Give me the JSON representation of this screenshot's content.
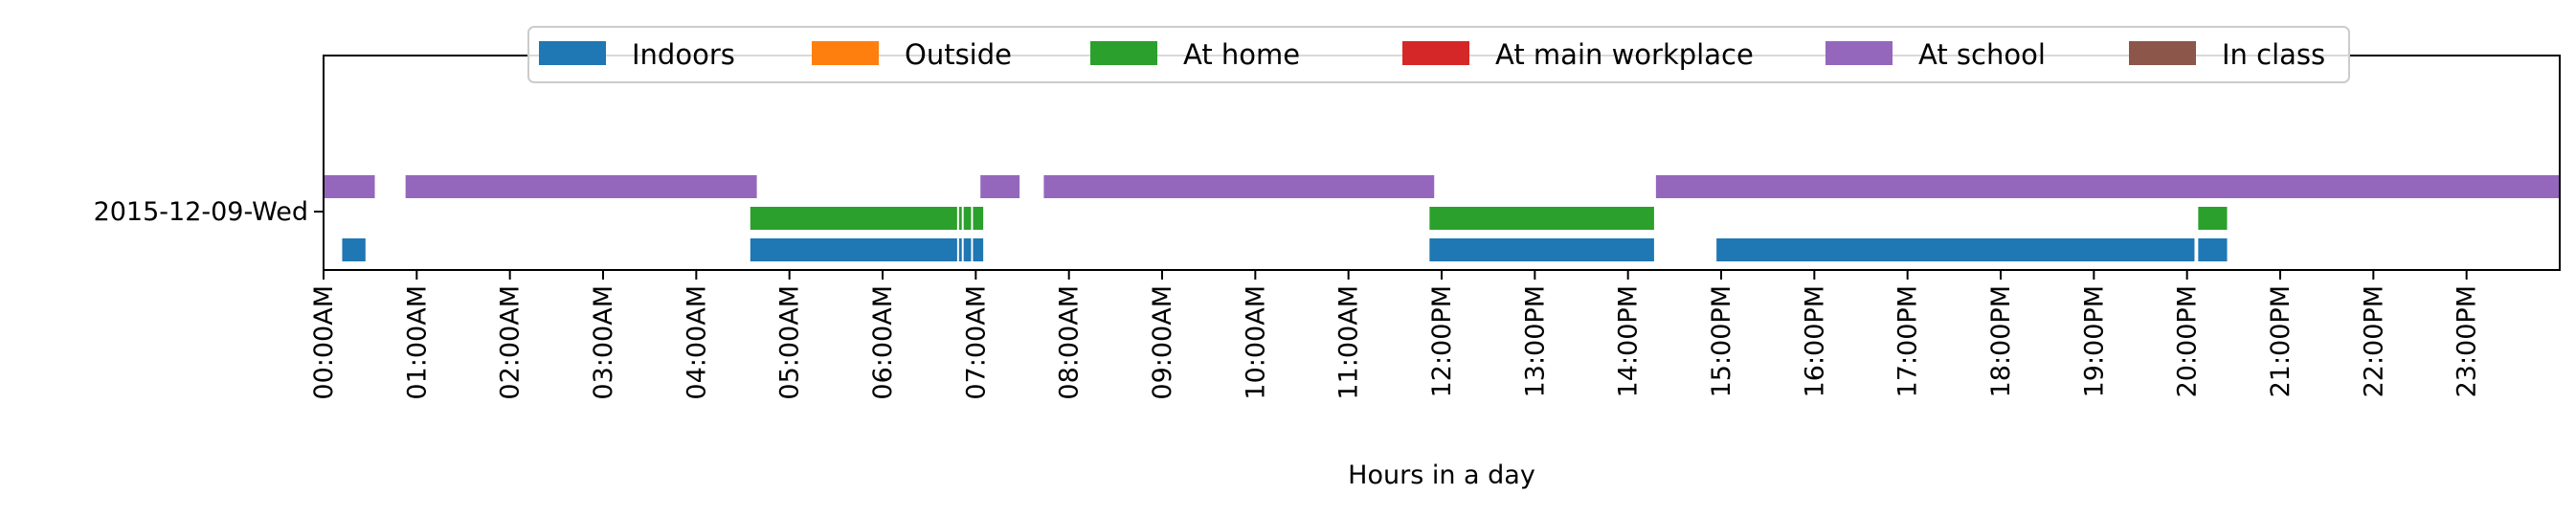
{
  "chart_data": {
    "type": "timeline",
    "title": "",
    "xlabel": "Hours in a day",
    "ylabel": "",
    "x_range_hours": [
      0,
      24
    ],
    "date_label": "2015-12-09-Wed",
    "x_ticks": [
      "00:00AM",
      "01:00AM",
      "02:00AM",
      "03:00AM",
      "04:00AM",
      "05:00AM",
      "06:00AM",
      "07:00AM",
      "08:00AM",
      "09:00AM",
      "10:00AM",
      "11:00AM",
      "12:00PM",
      "13:00PM",
      "14:00PM",
      "15:00PM",
      "16:00PM",
      "17:00PM",
      "18:00PM",
      "19:00PM",
      "20:00PM",
      "21:00PM",
      "22:00PM",
      "23:00PM"
    ],
    "legend_position": "top-center",
    "series": [
      {
        "name": "Indoors",
        "color": "#1f77b4",
        "intervals": [
          [
            0.2,
            0.45
          ],
          [
            4.58,
            6.8
          ],
          [
            6.82,
            6.85
          ],
          [
            6.87,
            6.95
          ],
          [
            6.97,
            7.08
          ],
          [
            11.87,
            14.28
          ],
          [
            14.95,
            20.08
          ],
          [
            20.12,
            20.43
          ]
        ]
      },
      {
        "name": "Outside",
        "color": "#ff7f0e",
        "intervals": []
      },
      {
        "name": "At home",
        "color": "#2ca02c",
        "intervals": [
          [
            4.58,
            6.8
          ],
          [
            6.82,
            6.85
          ],
          [
            6.87,
            6.95
          ],
          [
            6.97,
            7.08
          ],
          [
            11.87,
            14.28
          ],
          [
            20.12,
            20.43
          ]
        ]
      },
      {
        "name": "At main workplace",
        "color": "#d62728",
        "intervals": []
      },
      {
        "name": "At school",
        "color": "#9467bd",
        "intervals": [
          [
            0.0,
            0.55
          ],
          [
            0.88,
            4.65
          ],
          [
            7.05,
            7.47
          ],
          [
            7.73,
            11.92
          ],
          [
            14.3,
            24.0
          ]
        ]
      },
      {
        "name": "In class",
        "color": "#8c564b",
        "intervals": []
      }
    ]
  }
}
